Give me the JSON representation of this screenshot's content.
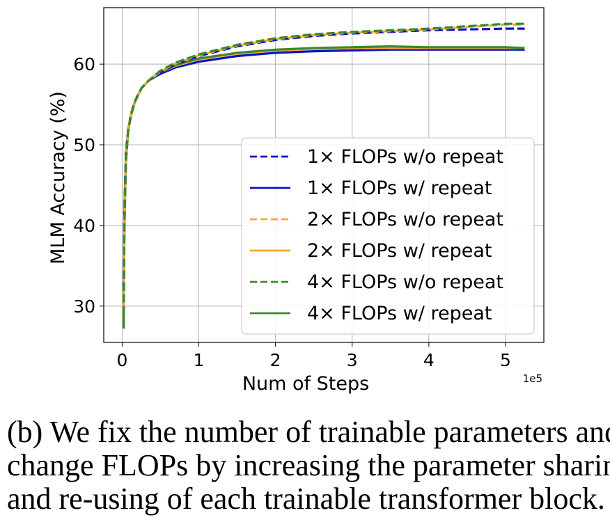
{
  "chart_data": {
    "type": "line",
    "xlabel": "Num of Steps",
    "ylabel": "MLM Accuracy (%)",
    "x_offset_label": "1e5",
    "xlim": [
      -0.24,
      5.5
    ],
    "ylim": [
      25.5,
      67
    ],
    "x_ticks": [
      0,
      1,
      2,
      3,
      4,
      5
    ],
    "y_ticks": [
      30,
      40,
      50,
      60
    ],
    "grid": true,
    "legend_position": "lower-right",
    "x": [
      0.02,
      0.03,
      0.05,
      0.08,
      0.12,
      0.17,
      0.25,
      0.35,
      0.5,
      0.7,
      1.0,
      1.5,
      2.0,
      2.5,
      3.0,
      3.5,
      4.0,
      4.5,
      5.0,
      5.25
    ],
    "series": [
      {
        "name": "1× FLOPs w/o repeat",
        "color": "#1010c8",
        "dash": true,
        "values": [
          32.0,
          42.0,
          49.0,
          52.0,
          54.0,
          55.5,
          57.0,
          58.0,
          59.0,
          60.0,
          61.0,
          62.2,
          63.0,
          63.5,
          63.8,
          64.0,
          64.2,
          64.3,
          64.4,
          64.4
        ]
      },
      {
        "name": "1× FLOPs w/ repeat",
        "color": "#1010c8",
        "dash": false,
        "values": [
          31.0,
          42.0,
          49.0,
          52.0,
          54.0,
          55.5,
          57.0,
          58.0,
          58.8,
          59.6,
          60.3,
          61.0,
          61.4,
          61.6,
          61.7,
          61.8,
          61.8,
          61.8,
          61.8,
          61.8
        ]
      },
      {
        "name": "2× FLOPs w/o repeat",
        "color": "#f5a830",
        "dash": true,
        "values": [
          30.0,
          41.0,
          48.5,
          52.0,
          54.0,
          55.5,
          57.0,
          58.0,
          59.1,
          60.1,
          61.1,
          62.3,
          63.1,
          63.6,
          63.9,
          64.1,
          64.3,
          64.6,
          64.9,
          64.9
        ]
      },
      {
        "name": "2× FLOPs w/ repeat",
        "color": "#f5a830",
        "dash": false,
        "values": [
          29.0,
          41.0,
          48.5,
          52.0,
          54.0,
          55.5,
          57.0,
          58.0,
          59.0,
          59.8,
          60.6,
          61.3,
          61.7,
          61.9,
          62.0,
          62.0,
          62.0,
          62.0,
          62.0,
          62.0
        ]
      },
      {
        "name": "4× FLOPs w/o repeat",
        "color": "#3a8a2a",
        "dash": true,
        "values": [
          27.5,
          40.0,
          48.0,
          51.8,
          53.8,
          55.4,
          57.0,
          58.0,
          59.2,
          60.2,
          61.2,
          62.4,
          63.2,
          63.7,
          64.0,
          64.2,
          64.4,
          64.7,
          65.0,
          65.0
        ]
      },
      {
        "name": "4× FLOPs w/ repeat",
        "color": "#3a8a2a",
        "dash": false,
        "values": [
          27.2,
          40.0,
          48.0,
          51.8,
          53.8,
          55.4,
          57.0,
          58.0,
          59.0,
          59.9,
          60.7,
          61.4,
          61.8,
          62.0,
          62.1,
          62.2,
          62.1,
          62.1,
          62.1,
          62.0
        ]
      }
    ]
  },
  "caption": [
    "(b) We fix the number of trainable parameters and",
    "change FLOPs by increasing the parameter sharing",
    "and re-using of each trainable transformer block."
  ]
}
